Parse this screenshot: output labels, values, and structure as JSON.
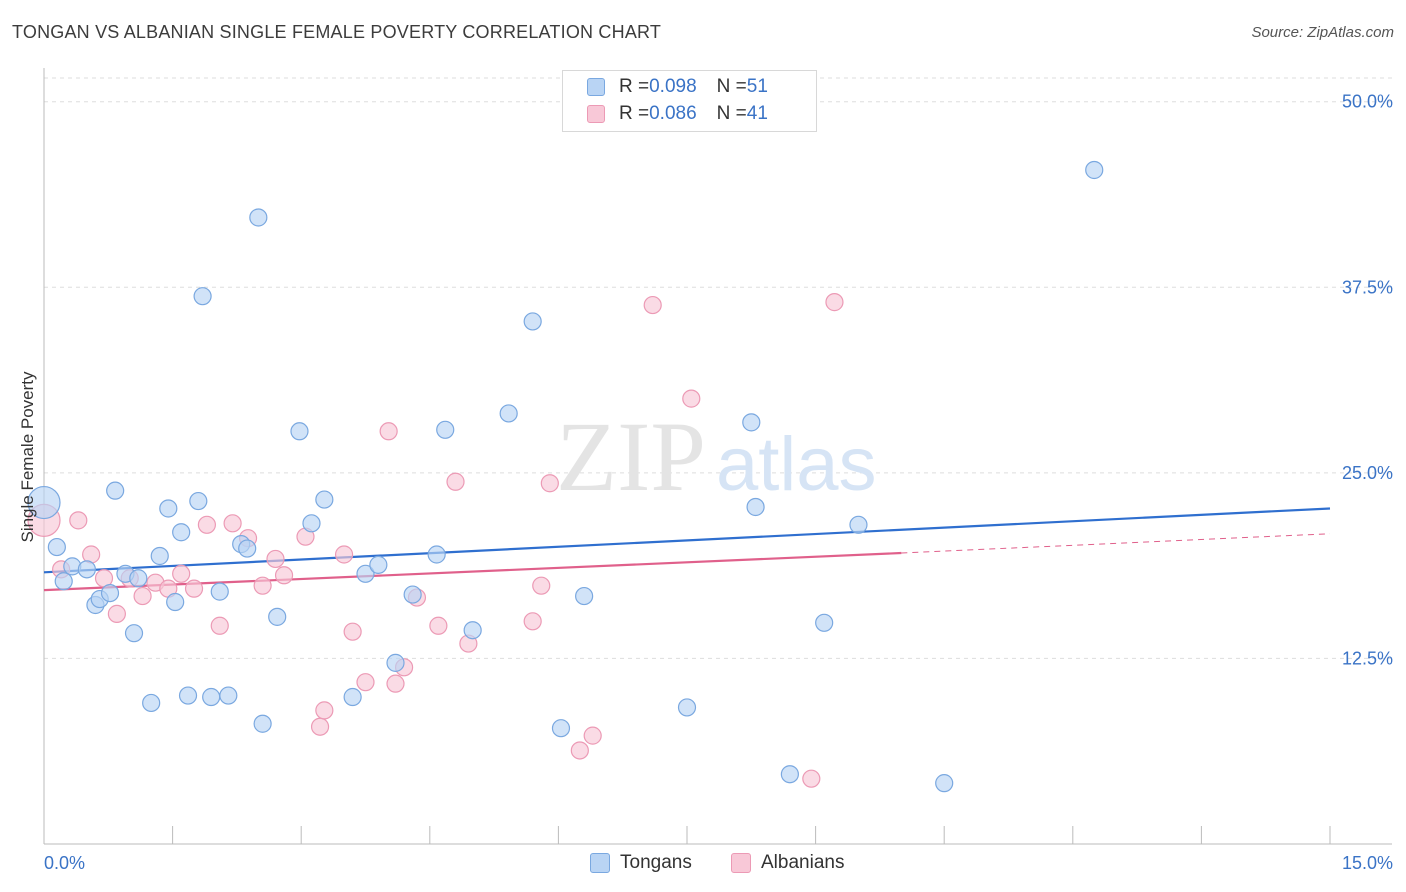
{
  "title": "TONGAN VS ALBANIAN SINGLE FEMALE POVERTY CORRELATION CHART",
  "source": "Source: ZipAtlas.com",
  "watermark": {
    "zip": "ZIP",
    "atlas": "atlas"
  },
  "legend": {
    "rows": [
      {
        "r_label": "R = ",
        "r_value": "0.098",
        "n_label": "N = ",
        "n_value": "51"
      },
      {
        "r_label": "R = ",
        "r_value": "0.086",
        "n_label": "N = ",
        "n_value": "41"
      }
    ]
  },
  "colors": {
    "tongan_fill": "#b9d4f4",
    "tongan_stroke": "#7aa8e0",
    "tongan_line": "#2f6fcf",
    "albanian_fill": "#f8c8d7",
    "albanian_stroke": "#ec9ab5",
    "albanian_line": "#e0608b",
    "tick_label": "#3a73c6",
    "grid": "#dddddd"
  },
  "chart_data": {
    "type": "scatter",
    "title": "TONGAN VS ALBANIAN SINGLE FEMALE POVERTY CORRELATION CHART",
    "xlabel": "",
    "ylabel": "Single Female Poverty",
    "xlim": [
      0,
      15
    ],
    "ylim": [
      0,
      52
    ],
    "x_tick_labels": [
      "0.0%",
      "15.0%"
    ],
    "y_ticks": [
      {
        "value": 12.5,
        "label": "12.5%"
      },
      {
        "value": 25.0,
        "label": "25.0%"
      },
      {
        "value": 37.5,
        "label": "37.5%"
      },
      {
        "value": 50.0,
        "label": "50.0%"
      }
    ],
    "series": [
      {
        "name": "Tongans",
        "trend": {
          "x": [
            0,
            15
          ],
          "y": [
            18.3,
            22.6
          ]
        },
        "points": [
          {
            "x": 0.0,
            "y": 23.0,
            "big": true
          },
          {
            "x": 0.15,
            "y": 20.0
          },
          {
            "x": 0.23,
            "y": 17.7
          },
          {
            "x": 0.33,
            "y": 18.7
          },
          {
            "x": 0.5,
            "y": 18.5
          },
          {
            "x": 0.6,
            "y": 16.1
          },
          {
            "x": 0.65,
            "y": 16.5
          },
          {
            "x": 0.77,
            "y": 16.9
          },
          {
            "x": 0.83,
            "y": 23.8
          },
          {
            "x": 0.95,
            "y": 18.2
          },
          {
            "x": 1.05,
            "y": 14.2
          },
          {
            "x": 1.1,
            "y": 17.9
          },
          {
            "x": 1.25,
            "y": 9.5
          },
          {
            "x": 1.35,
            "y": 19.4
          },
          {
            "x": 1.45,
            "y": 22.6
          },
          {
            "x": 1.53,
            "y": 16.3
          },
          {
            "x": 1.6,
            "y": 21.0
          },
          {
            "x": 1.68,
            "y": 10.0
          },
          {
            "x": 1.8,
            "y": 23.1
          },
          {
            "x": 1.85,
            "y": 36.9
          },
          {
            "x": 1.95,
            "y": 9.9
          },
          {
            "x": 2.05,
            "y": 17.0
          },
          {
            "x": 2.15,
            "y": 10.0
          },
          {
            "x": 2.3,
            "y": 20.2
          },
          {
            "x": 2.37,
            "y": 19.9
          },
          {
            "x": 2.5,
            "y": 42.2
          },
          {
            "x": 2.55,
            "y": 8.1
          },
          {
            "x": 2.72,
            "y": 15.3
          },
          {
            "x": 2.98,
            "y": 27.8
          },
          {
            "x": 3.12,
            "y": 21.6
          },
          {
            "x": 3.27,
            "y": 23.2
          },
          {
            "x": 3.6,
            "y": 9.9
          },
          {
            "x": 3.75,
            "y": 18.2
          },
          {
            "x": 3.9,
            "y": 18.8
          },
          {
            "x": 4.1,
            "y": 12.2
          },
          {
            "x": 4.3,
            "y": 16.8
          },
          {
            "x": 4.58,
            "y": 19.5
          },
          {
            "x": 4.68,
            "y": 27.9
          },
          {
            "x": 5.0,
            "y": 14.4
          },
          {
            "x": 5.42,
            "y": 29.0
          },
          {
            "x": 5.7,
            "y": 35.2
          },
          {
            "x": 6.03,
            "y": 7.8
          },
          {
            "x": 6.3,
            "y": 16.7
          },
          {
            "x": 7.5,
            "y": 9.2
          },
          {
            "x": 8.25,
            "y": 28.4
          },
          {
            "x": 8.3,
            "y": 22.7
          },
          {
            "x": 8.7,
            "y": 4.7
          },
          {
            "x": 9.1,
            "y": 14.9
          },
          {
            "x": 10.5,
            "y": 4.1
          },
          {
            "x": 12.25,
            "y": 45.4
          },
          {
            "x": 9.5,
            "y": 21.5
          }
        ]
      },
      {
        "name": "Albanians",
        "trend": {
          "x": [
            0,
            10.0
          ],
          "y": [
            17.1,
            19.6
          ]
        },
        "trend_dashed": {
          "x": [
            10.0,
            15
          ],
          "y": [
            19.6,
            20.9
          ]
        },
        "points": [
          {
            "x": 0.0,
            "y": 21.8,
            "big": true
          },
          {
            "x": 0.2,
            "y": 18.5
          },
          {
            "x": 0.4,
            "y": 21.8
          },
          {
            "x": 0.55,
            "y": 19.5
          },
          {
            "x": 0.7,
            "y": 17.9
          },
          {
            "x": 0.85,
            "y": 15.5
          },
          {
            "x": 1.0,
            "y": 17.9
          },
          {
            "x": 1.15,
            "y": 16.7
          },
          {
            "x": 1.3,
            "y": 17.6
          },
          {
            "x": 1.45,
            "y": 17.2
          },
          {
            "x": 1.6,
            "y": 18.2
          },
          {
            "x": 1.75,
            "y": 17.2
          },
          {
            "x": 1.9,
            "y": 21.5
          },
          {
            "x": 2.05,
            "y": 14.7
          },
          {
            "x": 2.2,
            "y": 21.6
          },
          {
            "x": 2.38,
            "y": 20.6
          },
          {
            "x": 2.55,
            "y": 17.4
          },
          {
            "x": 2.7,
            "y": 19.2
          },
          {
            "x": 2.8,
            "y": 18.1
          },
          {
            "x": 3.05,
            "y": 20.7
          },
          {
            "x": 3.22,
            "y": 7.9
          },
          {
            "x": 3.27,
            "y": 9.0
          },
          {
            "x": 3.5,
            "y": 19.5
          },
          {
            "x": 3.6,
            "y": 14.3
          },
          {
            "x": 3.75,
            "y": 10.9
          },
          {
            "x": 4.02,
            "y": 27.8
          },
          {
            "x": 4.1,
            "y": 10.8
          },
          {
            "x": 4.2,
            "y": 11.9
          },
          {
            "x": 4.35,
            "y": 16.6
          },
          {
            "x": 4.6,
            "y": 14.7
          },
          {
            "x": 4.8,
            "y": 24.4
          },
          {
            "x": 4.95,
            "y": 13.5
          },
          {
            "x": 5.7,
            "y": 15.0
          },
          {
            "x": 5.8,
            "y": 17.4
          },
          {
            "x": 5.9,
            "y": 24.3
          },
          {
            "x": 6.25,
            "y": 6.3
          },
          {
            "x": 6.4,
            "y": 7.3
          },
          {
            "x": 7.1,
            "y": 36.3
          },
          {
            "x": 7.55,
            "y": 30.0
          },
          {
            "x": 8.95,
            "y": 4.4
          },
          {
            "x": 9.22,
            "y": 36.5
          }
        ]
      }
    ]
  }
}
